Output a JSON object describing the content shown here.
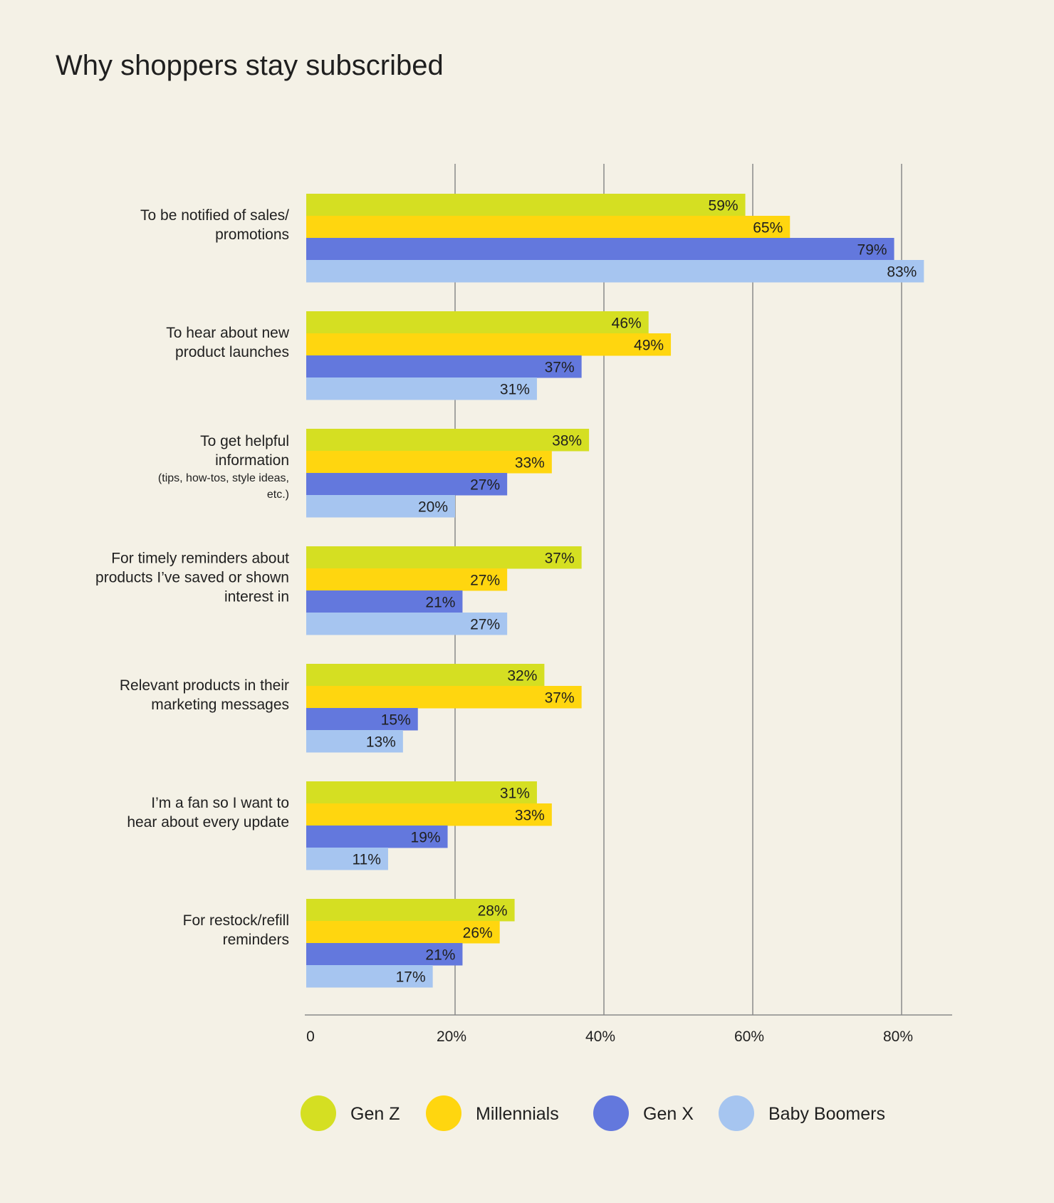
{
  "chart_data": {
    "type": "bar",
    "orientation": "horizontal",
    "title": "Why shoppers stay subscribed",
    "xlabel": "",
    "ylabel": "",
    "xlim": [
      0,
      86
    ],
    "ticks": [
      {
        "value": 0,
        "label": "0"
      },
      {
        "value": 20,
        "label": "20%"
      },
      {
        "value": 40,
        "label": "40%"
      },
      {
        "value": 60,
        "label": "60%"
      },
      {
        "value": 80,
        "label": "80%"
      }
    ],
    "grid": true,
    "legend_position": "bottom",
    "categories": [
      {
        "lines": [
          "To be notified of sales/",
          "promotions"
        ],
        "sub": []
      },
      {
        "lines": [
          "To hear about new",
          "product launches"
        ],
        "sub": []
      },
      {
        "lines": [
          "To get helpful",
          "information"
        ],
        "sub": [
          "(tips, how-tos, style ideas,",
          "etc.)"
        ]
      },
      {
        "lines": [
          "For timely reminders about",
          "products I’ve saved or shown",
          "interest in"
        ],
        "sub": []
      },
      {
        "lines": [
          "Relevant products in their",
          "marketing messages"
        ],
        "sub": []
      },
      {
        "lines": [
          "I’m a fan so I want to",
          "hear about every update"
        ],
        "sub": []
      },
      {
        "lines": [
          "For restock/refill",
          "reminders"
        ],
        "sub": []
      }
    ],
    "series": [
      {
        "name": "Gen Z",
        "color": "#d5df22",
        "values": [
          59,
          46,
          38,
          37,
          32,
          31,
          28
        ]
      },
      {
        "name": "Millennials",
        "color": "#ffd60f",
        "values": [
          65,
          49,
          33,
          27,
          37,
          33,
          26
        ]
      },
      {
        "name": "Gen X",
        "color": "#6378dd",
        "values": [
          79,
          37,
          27,
          21,
          15,
          19,
          21
        ]
      },
      {
        "name": "Baby Boomers",
        "color": "#a6c5f0",
        "values": [
          83,
          31,
          20,
          27,
          13,
          11,
          17
        ]
      }
    ],
    "value_suffix": "%"
  }
}
